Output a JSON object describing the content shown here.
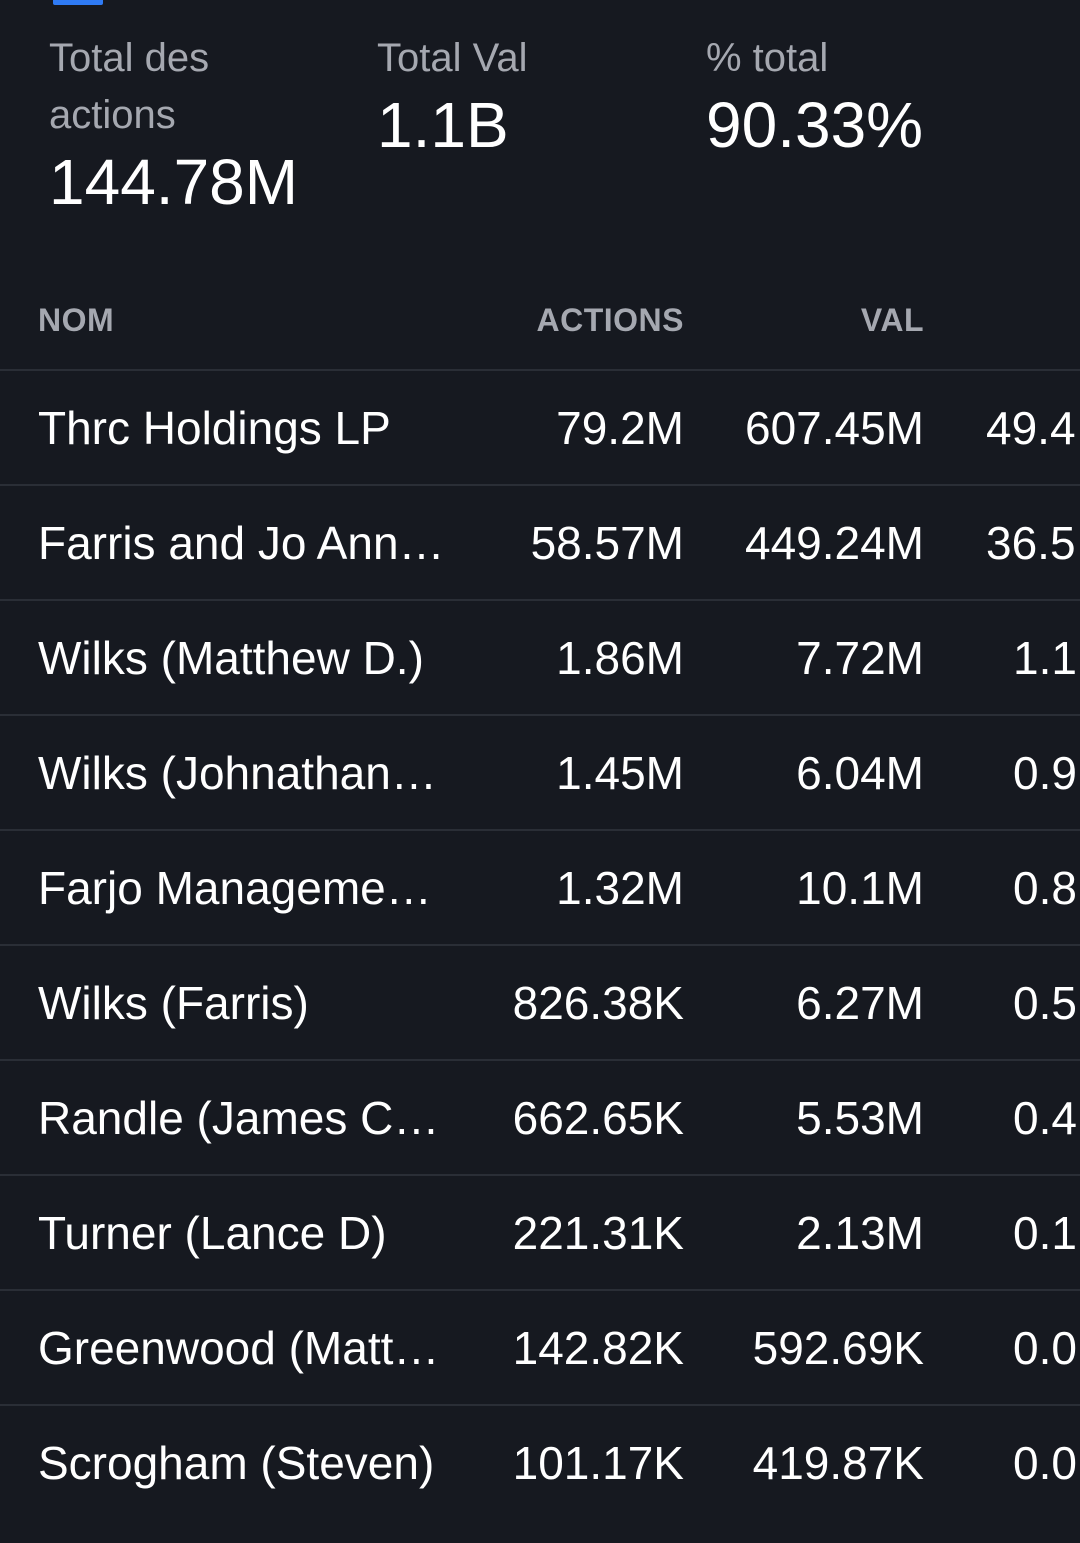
{
  "summary": {
    "total_shares_label": "Total des actions",
    "total_shares_value": "144.78M",
    "total_val_label": "Total Val",
    "total_val_value": "1.1B",
    "pct_total_label": "% total",
    "pct_total_value": "90.33%"
  },
  "table": {
    "headers": {
      "name": "NOM",
      "actions": "ACTIONS",
      "val": "VAL"
    },
    "rows": [
      {
        "name": "Thrc Holdings LP",
        "actions": "79.2M",
        "val": "607.45M",
        "pct": "49.4"
      },
      {
        "name": "Farris and Jo Ann…",
        "actions": "58.57M",
        "val": "449.24M",
        "pct": "36.5"
      },
      {
        "name": "Wilks (Matthew D.)",
        "actions": "1.86M",
        "val": "7.72M",
        "pct": "1.1"
      },
      {
        "name": "Wilks (Johnathan…",
        "actions": "1.45M",
        "val": "6.04M",
        "pct": "0.9"
      },
      {
        "name": "Farjo Manageme…",
        "actions": "1.32M",
        "val": "10.1M",
        "pct": "0.8"
      },
      {
        "name": "Wilks (Farris)",
        "actions": "826.38K",
        "val": "6.27M",
        "pct": "0.5"
      },
      {
        "name": "Randle (James C…",
        "actions": "662.65K",
        "val": "5.53M",
        "pct": "0.4"
      },
      {
        "name": "Turner (Lance D)",
        "actions": "221.31K",
        "val": "2.13M",
        "pct": "0.1"
      },
      {
        "name": "Greenwood (Matt…",
        "actions": "142.82K",
        "val": "592.69K",
        "pct": "0.0"
      },
      {
        "name": "Scrogham (Steven)",
        "actions": "101.17K",
        "val": "419.87K",
        "pct": "0.0"
      }
    ]
  },
  "colors": {
    "background": "#161920",
    "accent": "#2f7bf5",
    "muted_text": "#a5a8b0",
    "divider": "#2a2e36"
  }
}
